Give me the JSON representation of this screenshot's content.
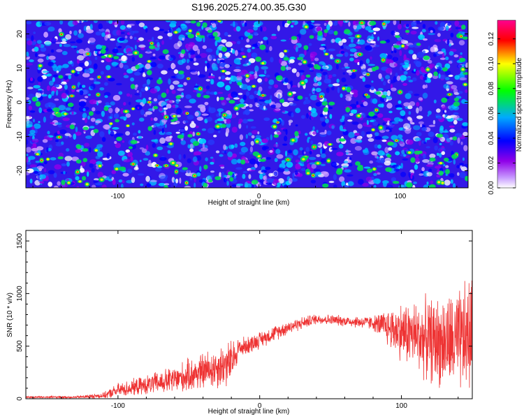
{
  "title": "S196.2025.274.00.35.G30",
  "chart_data": [
    {
      "type": "heatmap",
      "xlabel": "Height of straight line (km)",
      "ylabel": "Frequency (Hz)",
      "xlim": [
        -165,
        148
      ],
      "ylim": [
        -25,
        24
      ],
      "xticks": [
        -100,
        0,
        100
      ],
      "yticks": [
        -20,
        -10,
        0,
        10,
        20
      ],
      "description_values": {
        "colorbar_label": "Normalized spectral amplitude",
        "colorbar_range": [
          0.0,
          0.135
        ],
        "colorbar_ticks": [
          0.0,
          0.02,
          0.04,
          0.06,
          0.08,
          0.1,
          0.12
        ],
        "colorbar_tick_labels": [
          "0.00",
          "0.02",
          "0.04",
          "0.06",
          "0.08",
          "0.10",
          "0.12"
        ],
        "colormap": [
          "#ffffff",
          "#c89cff",
          "#9000e8",
          "#0000ff",
          "#00aaff",
          "#00ff00",
          "#ffff00",
          "#ff0000",
          "#ff0090"
        ]
      }
    },
    {
      "type": "line",
      "xlabel": "Height of straight line (km)",
      "ylabel": "SNR (10 * v/v)",
      "xlim": [
        -165,
        150
      ],
      "ylim": [
        0,
        1600
      ],
      "xticks": [
        -100,
        0,
        100
      ],
      "yticks": [
        0,
        500,
        1000,
        1500
      ],
      "series": [
        {
          "name": "SNR",
          "color": "#ee3333",
          "envelope_x": [
            -165,
            -130,
            -110,
            -100,
            -80,
            -60,
            -40,
            -20,
            -15,
            -10,
            0,
            20,
            40,
            60,
            80,
            100,
            120,
            140,
            148
          ],
          "envelope_mean": [
            15,
            15,
            30,
            80,
            130,
            180,
            260,
            340,
            480,
            500,
            560,
            680,
            760,
            740,
            720,
            640,
            560,
            520,
            600
          ],
          "envelope_noise": [
            10,
            10,
            25,
            60,
            80,
            120,
            160,
            200,
            90,
            80,
            70,
            60,
            45,
            45,
            60,
            250,
            350,
            450,
            500
          ]
        }
      ]
    }
  ]
}
